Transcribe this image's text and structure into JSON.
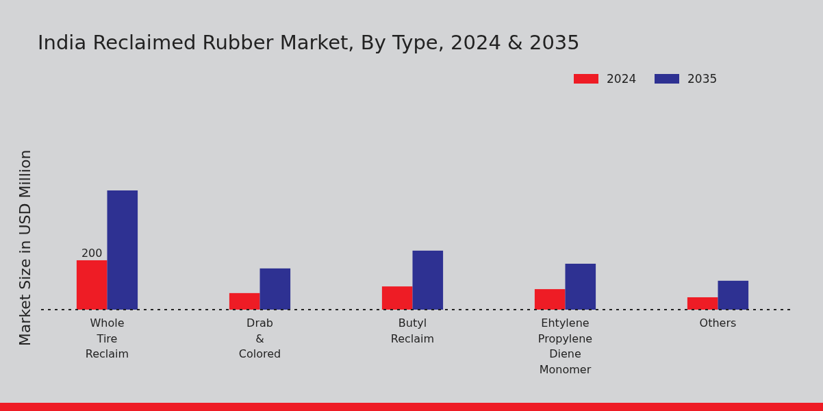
{
  "chart_data": {
    "type": "bar",
    "title": "India Reclaimed Rubber Market, By Type, 2024 & 2035",
    "ylabel": "Market Size in USD Million",
    "categories": [
      "Whole Tire Reclaim",
      "Drab & Colored",
      "Butyl Reclaim",
      "Ehtylene Propylene Diene Monomer",
      "Others"
    ],
    "series": [
      {
        "name": "2024",
        "color": "#ee1c25",
        "values": [
          200,
          67,
          94,
          83,
          50
        ],
        "value_labels": [
          "200",
          null,
          null,
          null,
          null
        ]
      },
      {
        "name": "2035",
        "color": "#2e3192",
        "values": [
          483,
          167,
          239,
          186,
          117
        ]
      }
    ],
    "legend": "top right"
  }
}
